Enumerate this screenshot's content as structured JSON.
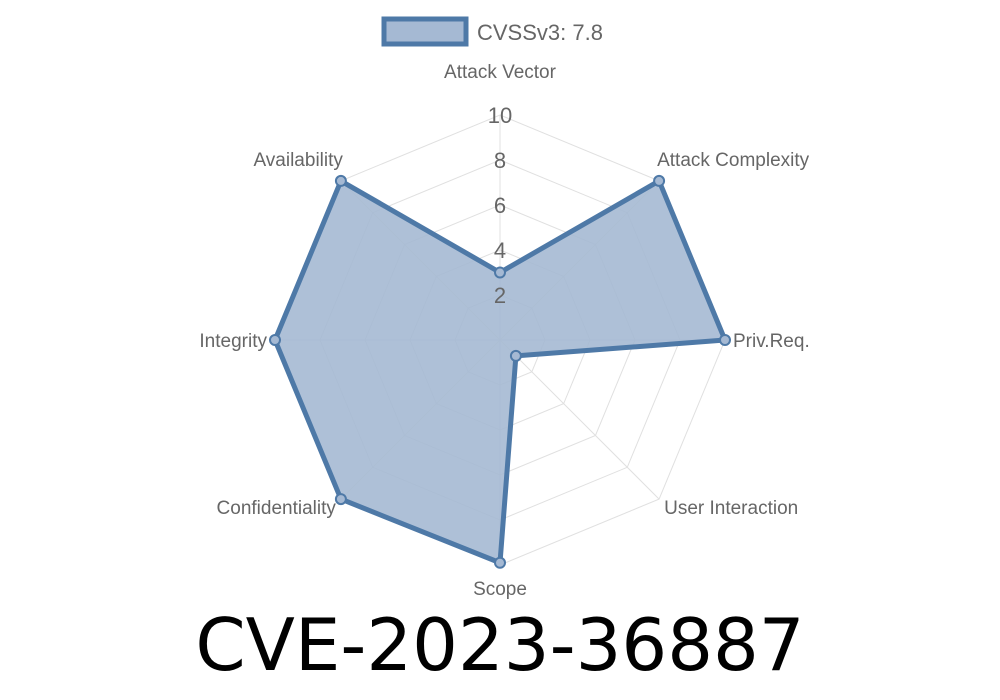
{
  "chart_data": {
    "type": "radar",
    "categories": [
      "Attack Vector",
      "Attack Complexity",
      "Priv.Req.",
      "User Interaction",
      "Scope",
      "Confidentiality",
      "Integrity",
      "Availability"
    ],
    "series": [
      {
        "name": "CVSSv3: 7.8",
        "values": [
          3.0,
          10,
          10,
          1.0,
          9.9,
          10,
          10,
          10
        ]
      }
    ],
    "rlim": [
      0,
      10
    ],
    "ticks": [
      "2",
      "4",
      "6",
      "8",
      "10"
    ],
    "grid": true,
    "legend_position": "top",
    "colors": {
      "line": "#4e79a7",
      "fill": "#a5b9d3",
      "grid": "#e0e0e0",
      "text": "#666666"
    }
  },
  "title": "CVE-2023-36887"
}
